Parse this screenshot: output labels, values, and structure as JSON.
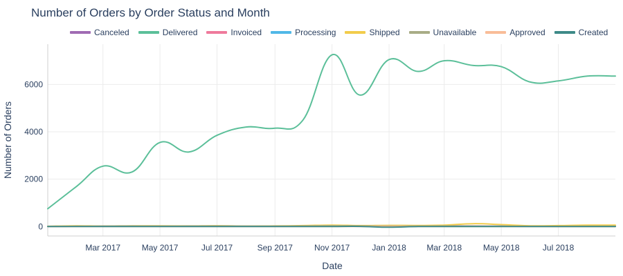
{
  "chart_data": {
    "type": "line",
    "title": "Number of Orders by Order Status and Month",
    "xlabel": "Date",
    "ylabel": "Number of Orders",
    "xlim": [
      "2017-01-01",
      "2018-08-31"
    ],
    "ylim": [
      -400,
      7700
    ],
    "yticks": [
      0,
      2000,
      4000,
      6000
    ],
    "xticks": [
      {
        "date": "2017-03-01",
        "label": "Mar 2017"
      },
      {
        "date": "2017-05-01",
        "label": "May 2017"
      },
      {
        "date": "2017-07-01",
        "label": "Jul 2017"
      },
      {
        "date": "2017-09-01",
        "label": "Sep 2017"
      },
      {
        "date": "2017-11-01",
        "label": "Nov 2017"
      },
      {
        "date": "2018-01-01",
        "label": "Jan 2018"
      },
      {
        "date": "2018-03-01",
        "label": "Mar 2018"
      },
      {
        "date": "2018-05-01",
        "label": "May 2018"
      },
      {
        "date": "2018-07-01",
        "label": "Jul 2018"
      }
    ],
    "grid": true,
    "legend_position": "top",
    "x": [
      "2017-01-01",
      "2017-02-01",
      "2017-03-01",
      "2017-04-01",
      "2017-05-01",
      "2017-06-01",
      "2017-07-01",
      "2017-08-01",
      "2017-09-01",
      "2017-10-01",
      "2017-11-01",
      "2017-12-01",
      "2018-01-01",
      "2018-02-01",
      "2018-03-01",
      "2018-04-01",
      "2018-05-01",
      "2018-06-01",
      "2018-07-01",
      "2018-08-01"
    ],
    "series": [
      {
        "name": "Canceled",
        "color": "#a06bb3",
        "values": [
          5,
          10,
          15,
          10,
          12,
          10,
          8,
          10,
          8,
          10,
          12,
          15,
          20,
          25,
          30,
          20,
          15,
          10,
          8,
          10
        ]
      },
      {
        "name": "Delivered",
        "color": "#5bbf99",
        "values": [
          750,
          1700,
          2550,
          2300,
          3550,
          3150,
          3850,
          4200,
          4150,
          4500,
          7250,
          5550,
          7050,
          6550,
          7000,
          6800,
          6750,
          6100,
          6150,
          6350
        ]
      },
      {
        "name": "Invoiced",
        "color": "#ef7a9c",
        "values": [
          5,
          10,
          12,
          10,
          8,
          10,
          10,
          8,
          10,
          12,
          15,
          10,
          12,
          10,
          8,
          10,
          8,
          10,
          8,
          10
        ]
      },
      {
        "name": "Processing",
        "color": "#50b8e7",
        "values": [
          5,
          8,
          10,
          8,
          10,
          8,
          10,
          8,
          8,
          10,
          12,
          10,
          8,
          10,
          8,
          8,
          10,
          8,
          8,
          10
        ]
      },
      {
        "name": "Shipped",
        "color": "#f2cc4b",
        "values": [
          10,
          30,
          20,
          30,
          30,
          25,
          35,
          20,
          25,
          40,
          60,
          40,
          50,
          45,
          60,
          120,
          80,
          30,
          40,
          60
        ]
      },
      {
        "name": "Unavailable",
        "color": "#a8ac86",
        "values": [
          2,
          10,
          15,
          20,
          15,
          20,
          20,
          15,
          15,
          20,
          25,
          20,
          20,
          15,
          20,
          15,
          10,
          5,
          2,
          0
        ]
      },
      {
        "name": "Approved",
        "color": "#f9bd98",
        "values": [
          0,
          0,
          0,
          0,
          0,
          0,
          0,
          0,
          0,
          0,
          0,
          0,
          0,
          0,
          2,
          0,
          0,
          0,
          0,
          0
        ]
      },
      {
        "name": "Created",
        "color": "#3d8a88",
        "values": [
          0,
          0,
          0,
          0,
          0,
          0,
          0,
          0,
          0,
          0,
          2,
          5,
          -30,
          0,
          0,
          0,
          0,
          0,
          0,
          0
        ]
      }
    ]
  }
}
